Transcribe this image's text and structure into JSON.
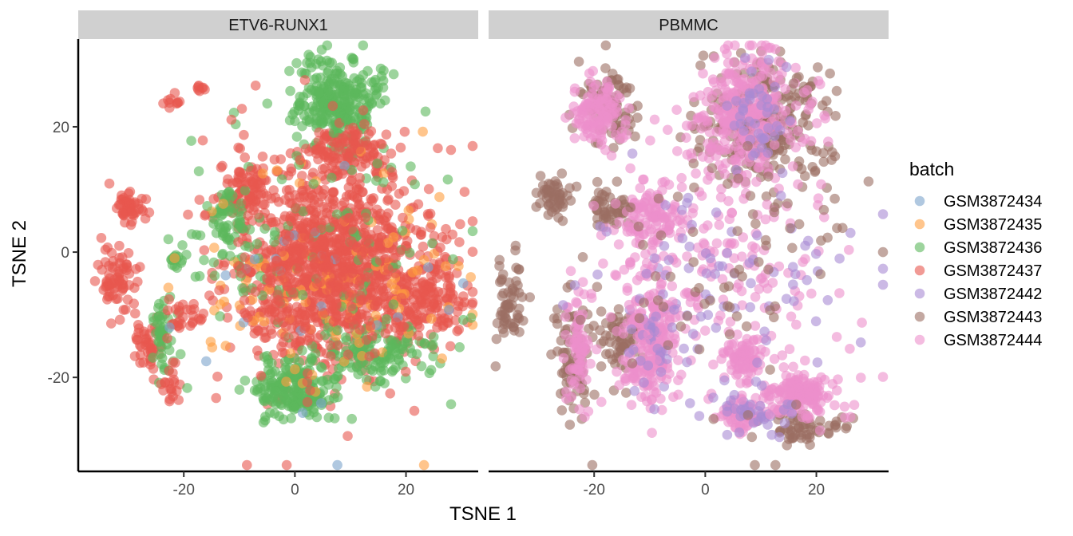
{
  "chart_data": {
    "type": "scatter",
    "xlabel": "TSNE 1",
    "ylabel": "TSNE 2",
    "xlim": [
      -39,
      33
    ],
    "ylim": [
      -35,
      34
    ],
    "x_ticks": [
      -20,
      0,
      20
    ],
    "y_ticks": [
      -20,
      0,
      20
    ],
    "grid": false,
    "point_alpha": 0.6,
    "legend": {
      "title": "batch",
      "placement": "right",
      "entries": [
        {
          "name": "GSM3872434",
          "color": "#7ba3cc"
        },
        {
          "name": "GSM3872435",
          "color": "#ff9f40"
        },
        {
          "name": "GSM3872436",
          "color": "#5cb85c"
        },
        {
          "name": "GSM3872437",
          "color": "#e8574f"
        },
        {
          "name": "GSM3872442",
          "color": "#a98bd4"
        },
        {
          "name": "GSM3872443",
          "color": "#9b6e62"
        },
        {
          "name": "GSM3872444",
          "color": "#ec8fcb"
        }
      ]
    },
    "facets": [
      {
        "label": "ETV6-RUNX1",
        "clusters": [
          {
            "batch": "GSM3872437",
            "cx": 6,
            "cy": -2,
            "sx": 9,
            "sy": 8,
            "n": 900
          },
          {
            "batch": "GSM3872437",
            "cx": 24,
            "cy": -8,
            "sx": 4,
            "sy": 3.5,
            "n": 150
          },
          {
            "batch": "GSM3872436",
            "cx": 8,
            "cy": 24,
            "sx": 4,
            "sy": 3.5,
            "n": 280
          },
          {
            "batch": "GSM3872437",
            "cx": 9,
            "cy": 16,
            "sx": 4,
            "sy": 2,
            "n": 110
          },
          {
            "batch": "GSM3872436",
            "cx": 0,
            "cy": -22,
            "sx": 3.5,
            "sy": 2.5,
            "n": 200
          },
          {
            "batch": "GSM3872436",
            "cx": 15,
            "cy": -16,
            "sx": 5,
            "sy": 2,
            "n": 120
          },
          {
            "batch": "GSM3872437",
            "cx": -9,
            "cy": 10,
            "sx": 2,
            "sy": 2,
            "n": 80
          },
          {
            "batch": "GSM3872436",
            "cx": -12,
            "cy": 5,
            "sx": 2.5,
            "sy": 3,
            "n": 60
          },
          {
            "batch": "GSM3872437",
            "cx": -30,
            "cy": 7,
            "sx": 1.5,
            "sy": 1.3,
            "n": 50
          },
          {
            "batch": "GSM3872437",
            "cx": -32,
            "cy": -5,
            "sx": 1.8,
            "sy": 2.5,
            "n": 70
          },
          {
            "batch": "GSM3872437",
            "cx": -26,
            "cy": -15,
            "sx": 1.3,
            "sy": 2,
            "n": 45
          },
          {
            "batch": "GSM3872436",
            "cx": -24,
            "cy": -13,
            "sx": 1.2,
            "sy": 3.5,
            "n": 45
          },
          {
            "batch": "GSM3872437",
            "cx": -22,
            "cy": -21,
            "sx": 0.8,
            "sy": 1.6,
            "n": 20
          },
          {
            "batch": "GSM3872437",
            "cx": -20,
            "cy": -10,
            "sx": 1.5,
            "sy": 1.2,
            "n": 25
          },
          {
            "batch": "GSM3872436",
            "cx": -21,
            "cy": -1,
            "sx": 1,
            "sy": 1,
            "n": 15
          },
          {
            "batch": "GSM3872437",
            "cx": -22,
            "cy": 24,
            "sx": 0.8,
            "sy": 0.6,
            "n": 10
          },
          {
            "batch": "GSM3872437",
            "cx": -17,
            "cy": 26,
            "sx": 0.6,
            "sy": 0.6,
            "n": 8
          },
          {
            "batch": "GSM3872435",
            "cx": 8,
            "cy": -4,
            "sx": 12,
            "sy": 9,
            "n": 120
          },
          {
            "batch": "GSM3872436",
            "cx": 5,
            "cy": 0,
            "sx": 13,
            "sy": 12,
            "n": 120
          },
          {
            "batch": "GSM3872434",
            "cx": 5,
            "cy": -5,
            "sx": 14,
            "sy": 12,
            "n": 25
          },
          {
            "batch": "GSM3872437",
            "cx": 4,
            "cy": 0,
            "sx": 13,
            "sy": 13,
            "n": 80
          },
          {
            "batch": "GSM3872437",
            "cx": 6,
            "cy": -4,
            "sx": 8,
            "sy": 7,
            "n": 220
          }
        ]
      },
      {
        "label": "PBMMC",
        "clusters": [
          {
            "batch": "GSM3872443",
            "cx": 11,
            "cy": 21,
            "sx": 6,
            "sy": 5,
            "n": 260
          },
          {
            "batch": "GSM3872444",
            "cx": 7,
            "cy": 22,
            "sx": 5,
            "sy": 5,
            "n": 300
          },
          {
            "batch": "GSM3872443",
            "cx": -17,
            "cy": 23,
            "sx": 3,
            "sy": 3,
            "n": 90
          },
          {
            "batch": "GSM3872444",
            "cx": -19,
            "cy": 22,
            "sx": 2.5,
            "sy": 2.5,
            "n": 120
          },
          {
            "batch": "GSM3872443",
            "cx": -27,
            "cy": 9,
            "sx": 1.6,
            "sy": 1.6,
            "n": 50
          },
          {
            "batch": "GSM3872443",
            "cx": -17,
            "cy": 7,
            "sx": 1.8,
            "sy": 1.8,
            "n": 50
          },
          {
            "batch": "GSM3872444",
            "cx": -10,
            "cy": 6,
            "sx": 2.5,
            "sy": 2.5,
            "n": 100
          },
          {
            "batch": "GSM3872443",
            "cx": -35,
            "cy": -8,
            "sx": 1.3,
            "sy": 3.5,
            "n": 60
          },
          {
            "batch": "GSM3872443",
            "cx": -24,
            "cy": -17,
            "sx": 1.8,
            "sy": 5,
            "n": 80
          },
          {
            "batch": "GSM3872444",
            "cx": -23,
            "cy": -15,
            "sx": 1.2,
            "sy": 5,
            "n": 70
          },
          {
            "batch": "GSM3872443",
            "cx": -15,
            "cy": -14,
            "sx": 2,
            "sy": 3,
            "n": 60
          },
          {
            "batch": "GSM3872444",
            "cx": -10,
            "cy": -15,
            "sx": 2.2,
            "sy": 5,
            "n": 200
          },
          {
            "batch": "GSM3872444",
            "cx": 7,
            "cy": -17,
            "sx": 1.5,
            "sy": 1.5,
            "n": 80
          },
          {
            "batch": "GSM3872443",
            "cx": 17,
            "cy": -28,
            "sx": 4,
            "sy": 1.2,
            "n": 60
          },
          {
            "batch": "GSM3872444",
            "cx": 17,
            "cy": -23,
            "sx": 4,
            "sy": 1.8,
            "n": 150
          },
          {
            "batch": "GSM3872444",
            "cx": 6,
            "cy": -26,
            "sx": 2,
            "sy": 1.2,
            "n": 60
          },
          {
            "batch": "GSM3872442",
            "cx": 8,
            "cy": -26,
            "sx": 3,
            "sy": 1.5,
            "n": 30
          },
          {
            "batch": "GSM3872442",
            "cx": 10,
            "cy": 22,
            "sx": 4,
            "sy": 4,
            "n": 40
          },
          {
            "batch": "GSM3872442",
            "cx": -10,
            "cy": -14,
            "sx": 2.5,
            "sy": 5,
            "n": 30
          },
          {
            "batch": "GSM3872444",
            "cx": 2,
            "cy": -4,
            "sx": 11,
            "sy": 10,
            "n": 220
          },
          {
            "batch": "GSM3872442",
            "cx": 5,
            "cy": -6,
            "sx": 13,
            "sy": 10,
            "n": 90
          },
          {
            "batch": "GSM3872443",
            "cx": 3,
            "cy": -4,
            "sx": 14,
            "sy": 12,
            "n": 80
          }
        ]
      }
    ]
  }
}
